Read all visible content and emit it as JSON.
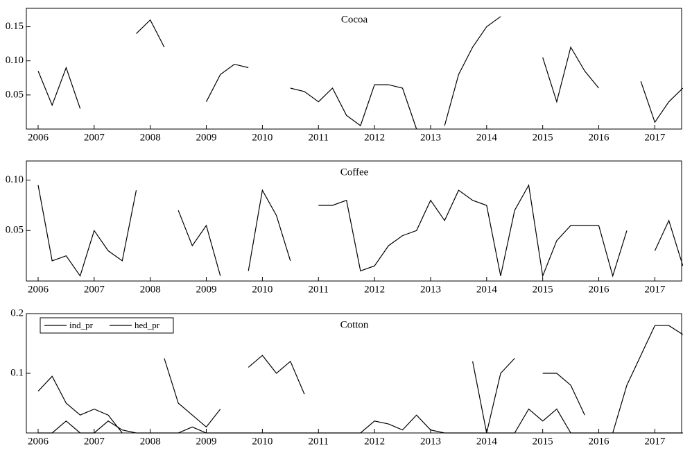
{
  "chart_data": [
    {
      "type": "line",
      "title": "Cocoa",
      "x": [
        2006,
        2006.25,
        2006.5,
        2006.75,
        2007,
        2007.25,
        2007.5,
        2007.75,
        2008,
        2008.25,
        2008.5,
        2008.75,
        2009,
        2009.25,
        2009.5,
        2009.75,
        2010,
        2010.25,
        2010.5,
        2010.75,
        2011,
        2011.25,
        2011.5,
        2011.75,
        2012,
        2012.25,
        2012.5,
        2012.75,
        2013,
        2013.25,
        2013.5,
        2013.75,
        2014,
        2014.25,
        2014.5,
        2014.75,
        2015,
        2015.25,
        2015.5,
        2015.75,
        2016,
        2016.25,
        2016.5,
        2016.75,
        2017,
        2017.25,
        2017.5
      ],
      "series": [
        {
          "color": "#000000",
          "values": [
            0.085,
            0.035,
            0.09,
            0.03,
            null,
            null,
            null,
            0.14,
            0.16,
            0.12,
            null,
            null,
            0.04,
            0.08,
            0.095,
            0.09,
            null,
            null,
            0.06,
            0.055,
            0.04,
            0.06,
            0.02,
            0.005,
            0.065,
            0.065,
            0.06,
            0,
            null,
            0.005,
            0.08,
            0.12,
            0.15,
            0.165,
            null,
            null,
            0.105,
            0.04,
            0.12,
            0.085,
            0.06,
            null,
            null,
            0.07,
            0.01,
            0.04,
            0.06
          ]
        }
      ],
      "xlim": [
        2005.79,
        2017.49
      ],
      "xticks": [
        2006,
        2007,
        2008,
        2009,
        2010,
        2011,
        2012,
        2013,
        2014,
        2015,
        2016,
        2017
      ],
      "ylim": [
        0,
        0.177
      ],
      "yticks": [
        0.05,
        {
          "value": 0.1,
          "label": "0.10"
        },
        0.15
      ]
    },
    {
      "type": "line",
      "title": "Coffee",
      "x": [
        2006,
        2006.25,
        2006.5,
        2006.75,
        2007,
        2007.25,
        2007.5,
        2007.75,
        2008,
        2008.25,
        2008.5,
        2008.75,
        2009,
        2009.25,
        2009.5,
        2009.75,
        2010,
        2010.25,
        2010.5,
        2010.75,
        2011,
        2011.25,
        2011.5,
        2011.75,
        2012,
        2012.25,
        2012.5,
        2012.75,
        2013,
        2013.25,
        2013.5,
        2013.75,
        2014,
        2014.25,
        2014.5,
        2014.75,
        2015,
        2015.25,
        2015.5,
        2015.75,
        2016,
        2016.25,
        2016.5,
        2016.75,
        2017,
        2017.25,
        2017.5
      ],
      "series": [
        {
          "color": "#000000",
          "values": [
            0.095,
            0.02,
            0.025,
            0.005,
            0.05,
            0.03,
            0.02,
            0.09,
            null,
            null,
            0.07,
            0.035,
            0.055,
            0.005,
            null,
            0.01,
            0.09,
            0.065,
            0.02,
            null,
            0.075,
            0.075,
            0.08,
            0.01,
            0.015,
            0.035,
            0.045,
            0.05,
            0.08,
            0.06,
            0.09,
            0.08,
            0.075,
            0.005,
            0.07,
            0.095,
            0.005,
            0.04,
            0.055,
            0.055,
            0.055,
            0.005,
            0.05,
            null,
            0.03,
            0.06,
            0.015
          ]
        }
      ],
      "xlim": [
        2005.79,
        2017.49
      ],
      "xticks": [
        2006,
        2007,
        2008,
        2009,
        2010,
        2011,
        2012,
        2013,
        2014,
        2015,
        2016,
        2017
      ],
      "ylim": [
        0,
        0.119
      ],
      "yticks": [
        0.05,
        {
          "value": 0.1,
          "label": "0.10"
        }
      ]
    },
    {
      "type": "line",
      "title": "Cotton",
      "legend": "upper left",
      "x": [
        2006,
        2006.25,
        2006.5,
        2006.75,
        2007,
        2007.25,
        2007.5,
        2007.75,
        2008,
        2008.25,
        2008.5,
        2008.75,
        2009,
        2009.25,
        2009.5,
        2009.75,
        2010,
        2010.25,
        2010.5,
        2010.75,
        2011,
        2011.25,
        2011.5,
        2011.75,
        2012,
        2012.25,
        2012.5,
        2012.75,
        2013,
        2013.25,
        2013.5,
        2013.75,
        2014,
        2014.25,
        2014.5,
        2014.75,
        2015,
        2015.25,
        2015.5,
        2015.75,
        2016,
        2016.25,
        2016.5,
        2016.75,
        2017,
        2017.25,
        2017.5
      ],
      "series": [
        {
          "name": "ind_pr",
          "color": "#000000",
          "values": [
            0.07,
            0.095,
            0.05,
            0.03,
            0.04,
            0.03,
            0,
            null,
            null,
            0.125,
            0.05,
            0.03,
            0.01,
            0.04,
            null,
            0.11,
            0.13,
            0.1,
            0.12,
            0.065,
            null,
            null,
            null,
            null,
            null,
            null,
            null,
            null,
            null,
            null,
            null,
            0.12,
            0,
            0.1,
            0.125,
            null,
            0.1,
            0.1,
            0.08,
            0.03,
            null,
            0,
            0.08,
            0.13,
            0.18,
            0.18,
            0.165
          ]
        },
        {
          "name": "hed_pr",
          "color": "#000000",
          "values": [
            0,
            0,
            0.02,
            0,
            0,
            0.02,
            0.005,
            0,
            0,
            0,
            0,
            0.01,
            0,
            0,
            0,
            0,
            0,
            0,
            0,
            0,
            0,
            0,
            0,
            0,
            0.02,
            0.015,
            0.005,
            0.03,
            0.005,
            0,
            0,
            0,
            0,
            0,
            0,
            0.04,
            0.02,
            0.04,
            0,
            0,
            0,
            0,
            0,
            0,
            0,
            0,
            0
          ]
        }
      ],
      "xlim": [
        2005.79,
        2017.49
      ],
      "xticks": [
        2006,
        2007,
        2008,
        2009,
        2010,
        2011,
        2012,
        2013,
        2014,
        2015,
        2016,
        2017
      ],
      "ylim": [
        0,
        0.2
      ],
      "yticks": [
        0.1,
        0.2
      ]
    }
  ]
}
